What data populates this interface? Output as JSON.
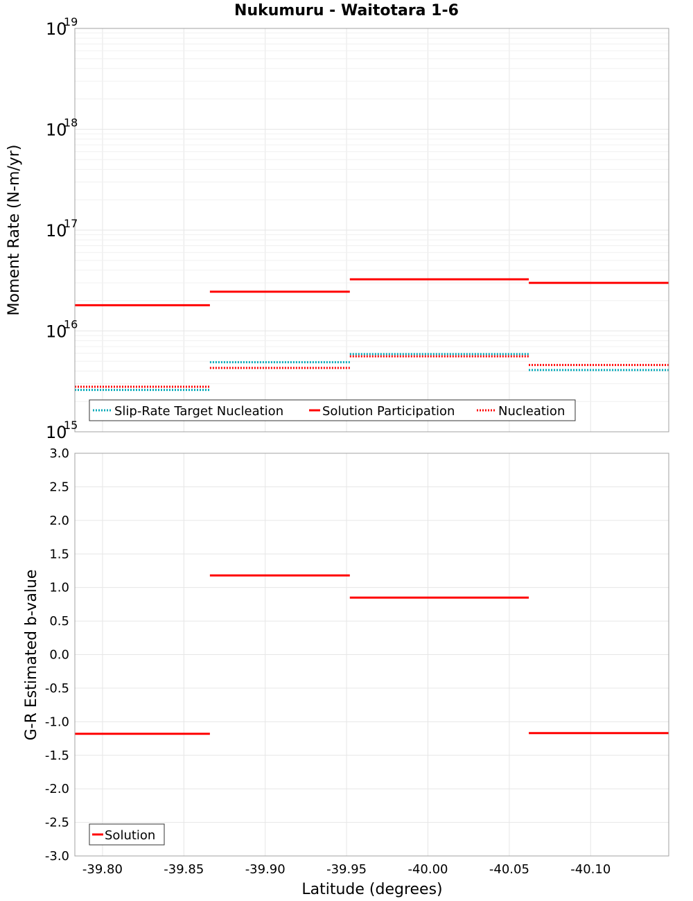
{
  "chart_data": [
    {
      "type": "line",
      "title": "Nukumuru - Waitotara 1-6",
      "ylabel": "Moment Rate (N-m/yr)",
      "xlabel": "",
      "yscale": "log",
      "ylim": [
        1000000000000000.0,
        1e+19
      ],
      "xlim": [
        -39.783,
        -40.148
      ],
      "y_ticks": [
        {
          "base": "10",
          "exp": "15"
        },
        {
          "base": "10",
          "exp": "16"
        },
        {
          "base": "10",
          "exp": "17"
        },
        {
          "base": "10",
          "exp": "18"
        },
        {
          "base": "10",
          "exp": "19"
        }
      ],
      "legend_position": "bottom-left",
      "series": [
        {
          "name": "Slip-Rate Target Nucleation",
          "style": "dotted",
          "color": "#00a8b8",
          "segments": [
            {
              "x0": -39.783,
              "x1": -39.866,
              "y": 2600000000000000.0
            },
            {
              "x0": -39.866,
              "x1": -39.952,
              "y": 4900000000000000.0
            },
            {
              "x0": -39.952,
              "x1": -40.062,
              "y": 5900000000000000.0
            },
            {
              "x0": -40.062,
              "x1": -40.148,
              "y": 4100000000000000.0
            }
          ]
        },
        {
          "name": "Solution Participation",
          "style": "solid",
          "color": "#ff0000",
          "segments": [
            {
              "x0": -39.783,
              "x1": -39.866,
              "y": 1.8e+16
            },
            {
              "x0": -39.866,
              "x1": -39.952,
              "y": 2.45e+16
            },
            {
              "x0": -39.952,
              "x1": -40.062,
              "y": 3.25e+16
            },
            {
              "x0": -40.062,
              "x1": -40.148,
              "y": 3e+16
            }
          ]
        },
        {
          "name": "Nucleation",
          "style": "dotted",
          "color": "#ff0000",
          "segments": [
            {
              "x0": -39.783,
              "x1": -39.866,
              "y": 2800000000000000.0
            },
            {
              "x0": -39.866,
              "x1": -39.952,
              "y": 4300000000000000.0
            },
            {
              "x0": -39.952,
              "x1": -40.062,
              "y": 5600000000000000.0
            },
            {
              "x0": -40.062,
              "x1": -40.148,
              "y": 4600000000000000.0
            }
          ]
        }
      ]
    },
    {
      "type": "line",
      "title": "",
      "ylabel": "G-R Estimated b-value",
      "xlabel": "Latitude (degrees)",
      "ylim": [
        -3.0,
        3.0
      ],
      "xlim": [
        -39.783,
        -40.148
      ],
      "y_ticks": [
        "-3.0",
        "-2.5",
        "-2.0",
        "-1.5",
        "-1.0",
        "-0.5",
        "0.0",
        "0.5",
        "1.0",
        "1.5",
        "2.0",
        "2.5",
        "3.0"
      ],
      "x_ticks": [
        "-39.80",
        "-39.85",
        "-39.90",
        "-39.95",
        "-40.00",
        "-40.05",
        "-40.10"
      ],
      "legend_position": "bottom-left",
      "series": [
        {
          "name": "Solution",
          "style": "solid",
          "color": "#ff0000",
          "segments": [
            {
              "x0": -39.783,
              "x1": -39.866,
              "y": -1.18
            },
            {
              "x0": -39.866,
              "x1": -39.952,
              "y": 1.18
            },
            {
              "x0": -39.952,
              "x1": -40.062,
              "y": 0.85
            },
            {
              "x0": -40.062,
              "x1": -40.148,
              "y": -1.17
            }
          ]
        }
      ]
    }
  ]
}
